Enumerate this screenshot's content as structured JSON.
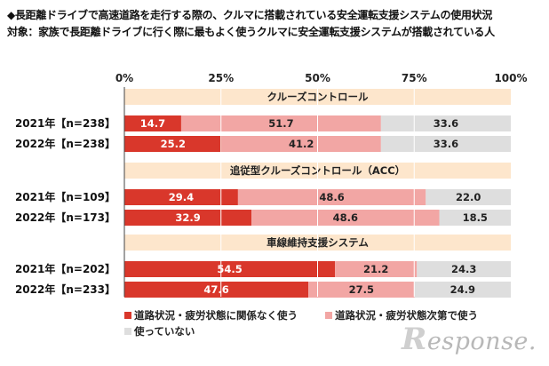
{
  "title": "◆長距離ドライブで高速道路を走行する際の、クルマに搭載されている安全運転支援システムの使用状況",
  "subtitle": "対象：家族で長距離ドライブに行く際に最もよく使うクルマに安全運転支援システムが搭載されている人",
  "watermark": "esponse.",
  "watermark_initial": "R",
  "chart_data": {
    "type": "bar",
    "orientation": "horizontal",
    "stacked": true,
    "xlim": [
      0,
      100
    ],
    "x_ticks": [
      "0%",
      "25%",
      "50%",
      "75%",
      "100%"
    ],
    "grid": true,
    "legend_position": "bottom-left",
    "series_names": [
      "道路状況・疲労状態に関係なく使う",
      "道路状況・疲労状態次第で使う",
      "使っていない"
    ],
    "series_colors": [
      "#d9372b",
      "#f2a6a4",
      "#dedede"
    ],
    "groups": [
      {
        "name": "クルーズコントロール",
        "rows": [
          {
            "label": "2021年【n=238】",
            "values": [
              14.7,
              51.7,
              33.6
            ]
          },
          {
            "label": "2022年【n=238】",
            "values": [
              25.2,
              41.2,
              33.6
            ]
          }
        ]
      },
      {
        "name": "追従型クルーズコントロール（ACC）",
        "rows": [
          {
            "label": "2021年【n=109】",
            "values": [
              29.4,
              48.6,
              22.0
            ]
          },
          {
            "label": "2022年【n=173】",
            "values": [
              32.9,
              48.6,
              18.5
            ]
          }
        ]
      },
      {
        "name": "車線維持支援システム",
        "rows": [
          {
            "label": "2021年【n=202】",
            "values": [
              54.5,
              21.2,
              24.3
            ]
          },
          {
            "label": "2022年【n=233】",
            "values": [
              47.6,
              27.5,
              24.9
            ]
          }
        ]
      }
    ]
  }
}
